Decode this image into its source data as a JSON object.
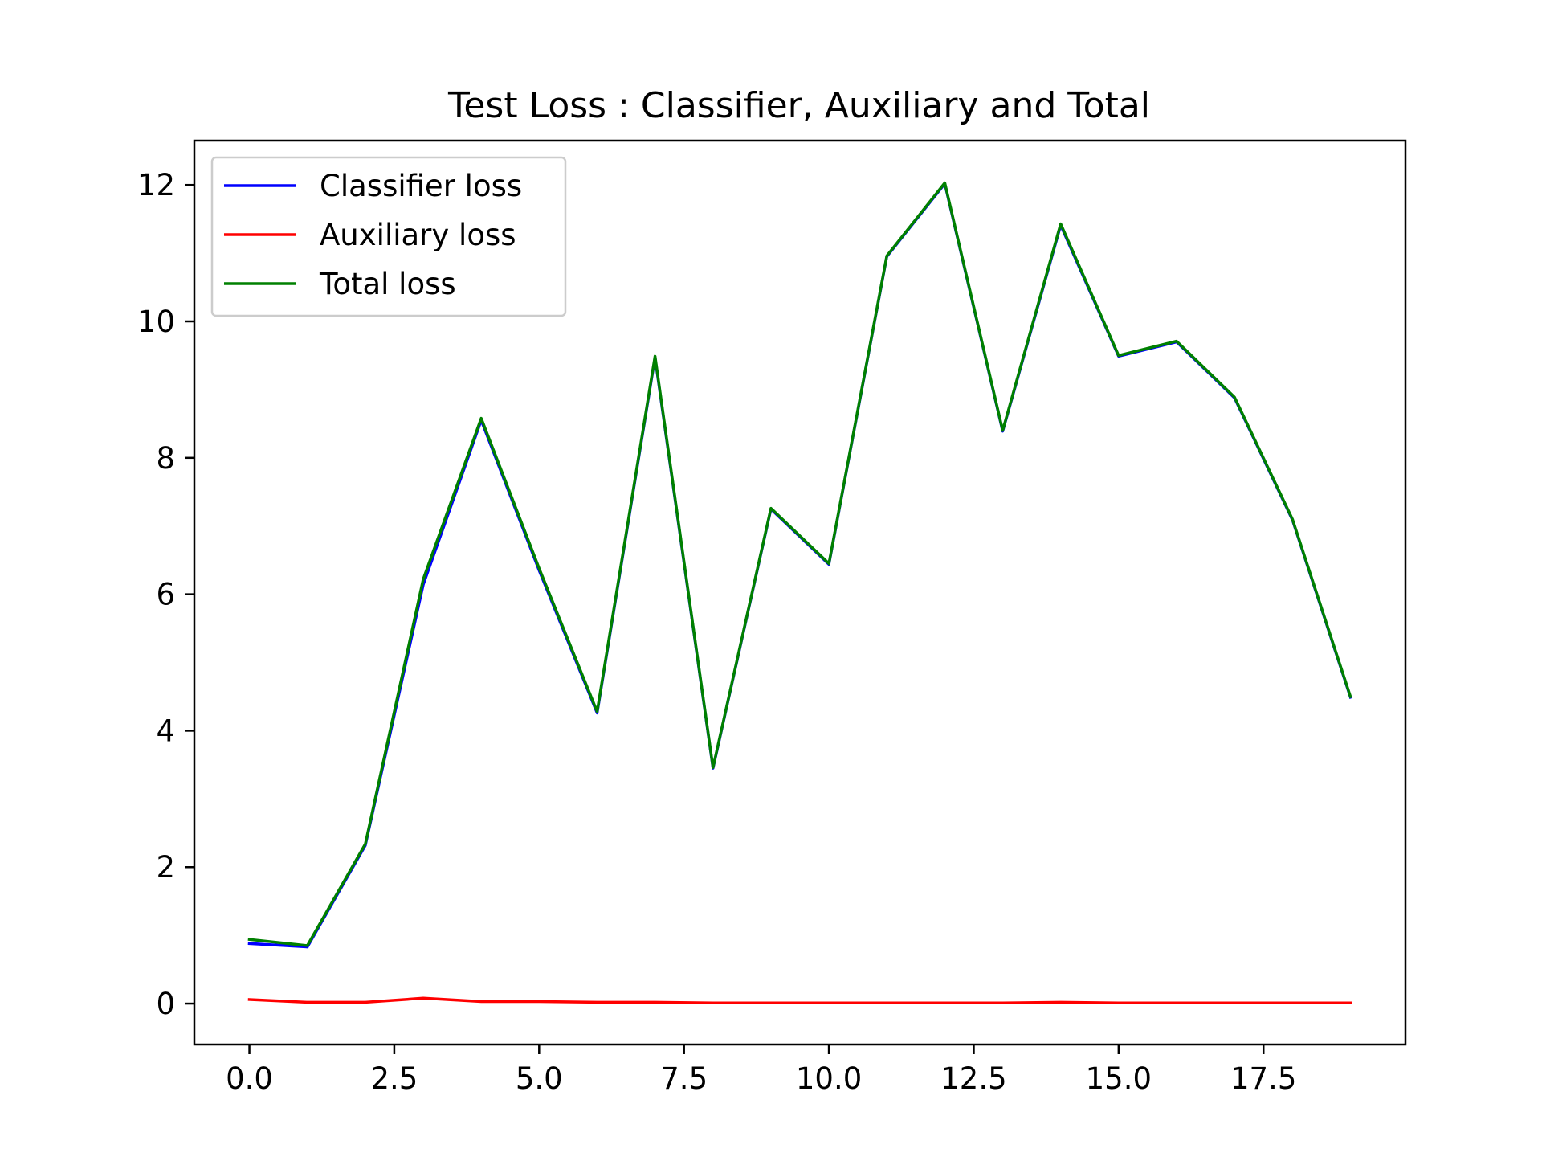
{
  "chart_data": {
    "type": "line",
    "title": "Test Loss : Classifier, Auxiliary and Total",
    "xlabel": "",
    "ylabel": "",
    "xlim": [
      -0.95,
      19.95
    ],
    "ylim": [
      -0.6,
      12.65
    ],
    "x_ticks": [
      0.0,
      2.5,
      5.0,
      7.5,
      10.0,
      12.5,
      15.0,
      17.5
    ],
    "x_tick_labels": [
      "0.0",
      "2.5",
      "5.0",
      "7.5",
      "10.0",
      "12.5",
      "15.0",
      "17.5"
    ],
    "y_ticks": [
      0,
      2,
      4,
      6,
      8,
      10,
      12
    ],
    "y_tick_labels": [
      "0",
      "2",
      "4",
      "6",
      "8",
      "10",
      "12"
    ],
    "grid": false,
    "legend_position": "upper-left",
    "x": [
      0,
      1,
      2,
      3,
      4,
      5,
      6,
      7,
      8,
      9,
      10,
      11,
      12,
      13,
      14,
      15,
      16,
      17,
      18,
      19
    ],
    "series": [
      {
        "name": "Classifier loss",
        "color": "#0000ff",
        "values": [
          0.88,
          0.83,
          2.32,
          6.14,
          8.55,
          6.35,
          4.26,
          9.47,
          3.45,
          7.25,
          6.44,
          10.95,
          12.02,
          8.39,
          11.41,
          9.49,
          9.7,
          8.88,
          7.09,
          4.49
        ]
      },
      {
        "name": "Auxiliary loss",
        "color": "#ff0000",
        "values": [
          0.06,
          0.02,
          0.02,
          0.08,
          0.03,
          0.03,
          0.02,
          0.02,
          0.01,
          0.01,
          0.01,
          0.01,
          0.01,
          0.01,
          0.02,
          0.01,
          0.01,
          0.01,
          0.01,
          0.01
        ]
      },
      {
        "name": "Total loss",
        "color": "#008000",
        "values": [
          0.94,
          0.85,
          2.34,
          6.22,
          8.58,
          6.38,
          4.28,
          9.49,
          3.46,
          7.26,
          6.45,
          10.96,
          12.03,
          8.4,
          11.43,
          9.5,
          9.71,
          8.89,
          7.1,
          4.5
        ]
      }
    ]
  }
}
